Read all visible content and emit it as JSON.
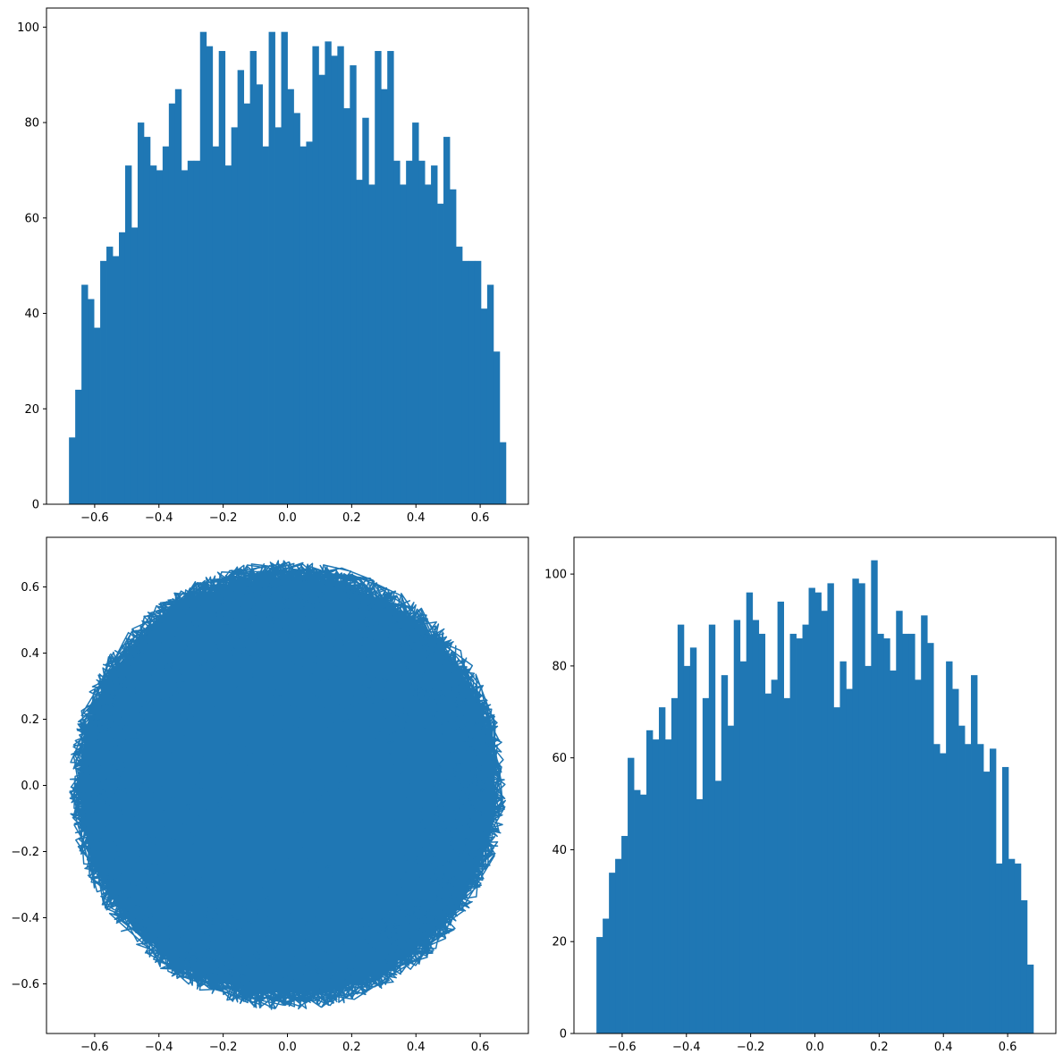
{
  "colors": {
    "bar": "#1f77b4",
    "line": "#1f77b4",
    "axes": "#000000",
    "background": "#ffffff"
  },
  "chart_data": [
    {
      "id": "hist-x",
      "type": "bar",
      "title": "",
      "xlabel": "",
      "ylabel": "",
      "xlim": [
        -0.75,
        0.75
      ],
      "ylim": [
        0,
        104
      ],
      "x_ticks": [
        -0.6,
        -0.4,
        -0.2,
        0.0,
        0.2,
        0.4,
        0.6
      ],
      "x_tick_labels": [
        "−0.6",
        "−0.4",
        "−0.2",
        "0.0",
        "0.2",
        "0.4",
        "0.6"
      ],
      "y_ticks": [
        0,
        20,
        40,
        60,
        80,
        100
      ],
      "y_tick_labels": [
        "0",
        "20",
        "40",
        "60",
        "80",
        "100"
      ],
      "bin_start": -0.68,
      "bin_end": 0.68,
      "values": [
        14,
        24,
        46,
        43,
        37,
        51,
        54,
        52,
        57,
        71,
        58,
        80,
        77,
        71,
        70,
        75,
        84,
        87,
        70,
        72,
        72,
        99,
        96,
        75,
        95,
        71,
        79,
        91,
        84,
        95,
        88,
        75,
        99,
        79,
        99,
        87,
        82,
        75,
        76,
        96,
        90,
        97,
        94,
        96,
        83,
        92,
        68,
        81,
        67,
        95,
        87,
        95,
        72,
        67,
        72,
        80,
        72,
        67,
        71,
        63,
        77,
        66,
        54,
        51,
        51,
        51,
        41,
        46,
        32,
        13
      ]
    },
    {
      "id": "hist-y",
      "type": "bar",
      "title": "",
      "xlabel": "",
      "ylabel": "",
      "xlim": [
        -0.75,
        0.75
      ],
      "ylim": [
        0,
        108
      ],
      "x_ticks": [
        -0.6,
        -0.4,
        -0.2,
        0.0,
        0.2,
        0.4,
        0.6
      ],
      "x_tick_labels": [
        "−0.6",
        "−0.4",
        "−0.2",
        "0.0",
        "0.2",
        "0.4",
        "0.6"
      ],
      "y_ticks": [
        0,
        20,
        40,
        60,
        80,
        100
      ],
      "y_tick_labels": [
        "0",
        "20",
        "40",
        "60",
        "80",
        "100"
      ],
      "bin_start": -0.68,
      "bin_end": 0.68,
      "values": [
        21,
        25,
        35,
        38,
        43,
        60,
        53,
        52,
        66,
        64,
        71,
        64,
        73,
        89,
        80,
        84,
        51,
        73,
        89,
        55,
        78,
        67,
        90,
        81,
        96,
        90,
        87,
        74,
        77,
        94,
        73,
        87,
        86,
        89,
        97,
        96,
        92,
        98,
        71,
        81,
        75,
        99,
        98,
        80,
        103,
        87,
        86,
        79,
        92,
        87,
        87,
        77,
        91,
        85,
        63,
        61,
        81,
        75,
        67,
        63,
        78,
        63,
        57,
        62,
        37,
        58,
        38,
        37,
        29,
        15
      ]
    },
    {
      "id": "trajectory",
      "type": "line",
      "title": "",
      "xlabel": "",
      "ylabel": "",
      "xlim": [
        -0.75,
        0.75
      ],
      "ylim": [
        -0.75,
        0.75
      ],
      "radius": 0.68,
      "x_ticks": [
        -0.6,
        -0.4,
        -0.2,
        0.0,
        0.2,
        0.4,
        0.6
      ],
      "x_tick_labels": [
        "−0.6",
        "−0.4",
        "−0.2",
        "0.0",
        "0.2",
        "0.4",
        "0.6"
      ],
      "y_ticks": [
        -0.6,
        -0.4,
        -0.2,
        0.0,
        0.2,
        0.4,
        0.6
      ],
      "y_tick_labels": [
        "−0.6",
        "−0.4",
        "−0.2",
        "0.0",
        "0.2",
        "0.4",
        "0.6"
      ]
    }
  ]
}
